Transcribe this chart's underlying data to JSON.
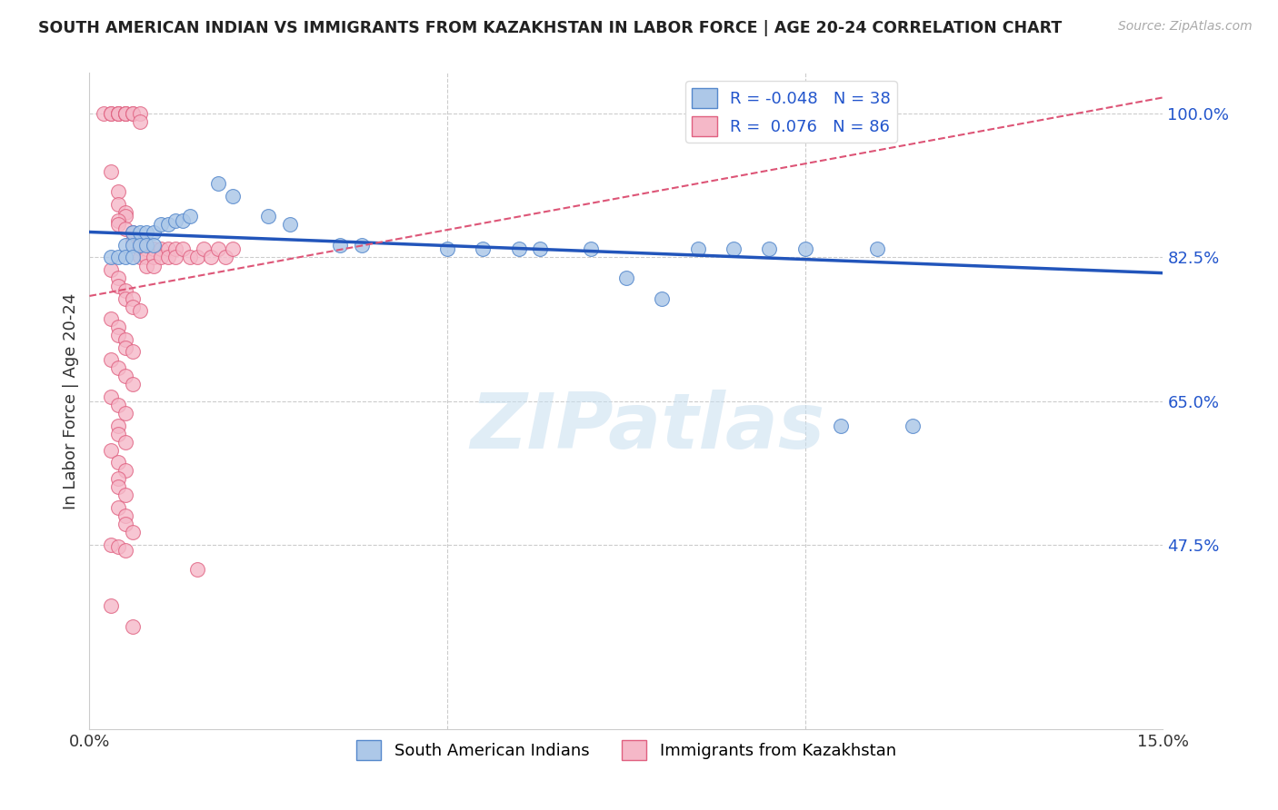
{
  "title": "SOUTH AMERICAN INDIAN VS IMMIGRANTS FROM KAZAKHSTAN IN LABOR FORCE | AGE 20-24 CORRELATION CHART",
  "source": "Source: ZipAtlas.com",
  "ylabel": "In Labor Force | Age 20-24",
  "xlim": [
    0.0,
    0.15
  ],
  "ylim": [
    0.25,
    1.05
  ],
  "yticks": [
    0.475,
    0.65,
    0.825,
    1.0
  ],
  "yticklabels": [
    "47.5%",
    "65.0%",
    "82.5%",
    "100.0%"
  ],
  "blue_R": -0.048,
  "blue_N": 38,
  "pink_R": 0.076,
  "pink_N": 86,
  "blue_color": "#adc8e8",
  "blue_edge": "#5588cc",
  "pink_color": "#f5b8c8",
  "pink_edge": "#e06080",
  "blue_line_color": "#2255bb",
  "pink_line_color": "#dd5577",
  "blue_line_x": [
    0.0,
    0.15
  ],
  "blue_line_y": [
    0.856,
    0.806
  ],
  "pink_line_x": [
    0.0,
    0.15
  ],
  "pink_line_y": [
    0.778,
    1.02
  ],
  "blue_scatter": [
    [
      0.003,
      0.825
    ],
    [
      0.004,
      0.825
    ],
    [
      0.005,
      0.84
    ],
    [
      0.005,
      0.825
    ],
    [
      0.006,
      0.855
    ],
    [
      0.006,
      0.84
    ],
    [
      0.006,
      0.825
    ],
    [
      0.007,
      0.855
    ],
    [
      0.007,
      0.84
    ],
    [
      0.008,
      0.855
    ],
    [
      0.008,
      0.84
    ],
    [
      0.009,
      0.855
    ],
    [
      0.009,
      0.84
    ],
    [
      0.01,
      0.865
    ],
    [
      0.011,
      0.865
    ],
    [
      0.012,
      0.87
    ],
    [
      0.013,
      0.87
    ],
    [
      0.014,
      0.875
    ],
    [
      0.018,
      0.915
    ],
    [
      0.02,
      0.9
    ],
    [
      0.025,
      0.875
    ],
    [
      0.028,
      0.865
    ],
    [
      0.035,
      0.84
    ],
    [
      0.038,
      0.84
    ],
    [
      0.05,
      0.835
    ],
    [
      0.055,
      0.835
    ],
    [
      0.06,
      0.835
    ],
    [
      0.063,
      0.835
    ],
    [
      0.07,
      0.835
    ],
    [
      0.075,
      0.8
    ],
    [
      0.08,
      0.775
    ],
    [
      0.085,
      0.835
    ],
    [
      0.09,
      0.835
    ],
    [
      0.095,
      0.835
    ],
    [
      0.1,
      0.835
    ],
    [
      0.105,
      0.62
    ],
    [
      0.11,
      0.835
    ],
    [
      0.115,
      0.62
    ]
  ],
  "pink_scatter": [
    [
      0.002,
      1.0
    ],
    [
      0.003,
      1.0
    ],
    [
      0.003,
      1.0
    ],
    [
      0.004,
      1.0
    ],
    [
      0.004,
      1.0
    ],
    [
      0.004,
      1.0
    ],
    [
      0.005,
      1.0
    ],
    [
      0.005,
      1.0
    ],
    [
      0.005,
      1.0
    ],
    [
      0.006,
      1.0
    ],
    [
      0.006,
      1.0
    ],
    [
      0.007,
      1.0
    ],
    [
      0.007,
      0.99
    ],
    [
      0.003,
      0.93
    ],
    [
      0.004,
      0.905
    ],
    [
      0.004,
      0.89
    ],
    [
      0.005,
      0.88
    ],
    [
      0.005,
      0.875
    ],
    [
      0.004,
      0.87
    ],
    [
      0.004,
      0.865
    ],
    [
      0.005,
      0.86
    ],
    [
      0.006,
      0.855
    ],
    [
      0.006,
      0.845
    ],
    [
      0.007,
      0.845
    ],
    [
      0.007,
      0.835
    ],
    [
      0.007,
      0.825
    ],
    [
      0.008,
      0.835
    ],
    [
      0.008,
      0.825
    ],
    [
      0.008,
      0.815
    ],
    [
      0.009,
      0.835
    ],
    [
      0.009,
      0.825
    ],
    [
      0.009,
      0.815
    ],
    [
      0.01,
      0.835
    ],
    [
      0.01,
      0.825
    ],
    [
      0.011,
      0.835
    ],
    [
      0.011,
      0.825
    ],
    [
      0.012,
      0.835
    ],
    [
      0.012,
      0.825
    ],
    [
      0.013,
      0.835
    ],
    [
      0.014,
      0.825
    ],
    [
      0.015,
      0.825
    ],
    [
      0.016,
      0.835
    ],
    [
      0.017,
      0.825
    ],
    [
      0.018,
      0.835
    ],
    [
      0.019,
      0.825
    ],
    [
      0.02,
      0.835
    ],
    [
      0.003,
      0.81
    ],
    [
      0.004,
      0.8
    ],
    [
      0.004,
      0.79
    ],
    [
      0.005,
      0.785
    ],
    [
      0.005,
      0.775
    ],
    [
      0.006,
      0.775
    ],
    [
      0.006,
      0.765
    ],
    [
      0.007,
      0.76
    ],
    [
      0.003,
      0.75
    ],
    [
      0.004,
      0.74
    ],
    [
      0.004,
      0.73
    ],
    [
      0.005,
      0.725
    ],
    [
      0.005,
      0.715
    ],
    [
      0.006,
      0.71
    ],
    [
      0.003,
      0.7
    ],
    [
      0.004,
      0.69
    ],
    [
      0.005,
      0.68
    ],
    [
      0.006,
      0.67
    ],
    [
      0.003,
      0.655
    ],
    [
      0.004,
      0.645
    ],
    [
      0.005,
      0.635
    ],
    [
      0.004,
      0.62
    ],
    [
      0.004,
      0.61
    ],
    [
      0.005,
      0.6
    ],
    [
      0.003,
      0.59
    ],
    [
      0.004,
      0.575
    ],
    [
      0.005,
      0.565
    ],
    [
      0.004,
      0.555
    ],
    [
      0.004,
      0.545
    ],
    [
      0.005,
      0.535
    ],
    [
      0.004,
      0.52
    ],
    [
      0.005,
      0.51
    ],
    [
      0.005,
      0.5
    ],
    [
      0.006,
      0.49
    ],
    [
      0.003,
      0.475
    ],
    [
      0.004,
      0.472
    ],
    [
      0.005,
      0.468
    ],
    [
      0.015,
      0.445
    ],
    [
      0.003,
      0.4
    ],
    [
      0.006,
      0.375
    ]
  ],
  "watermark_text": "ZIPatlas",
  "background_color": "#ffffff",
  "grid_color": "#cccccc"
}
